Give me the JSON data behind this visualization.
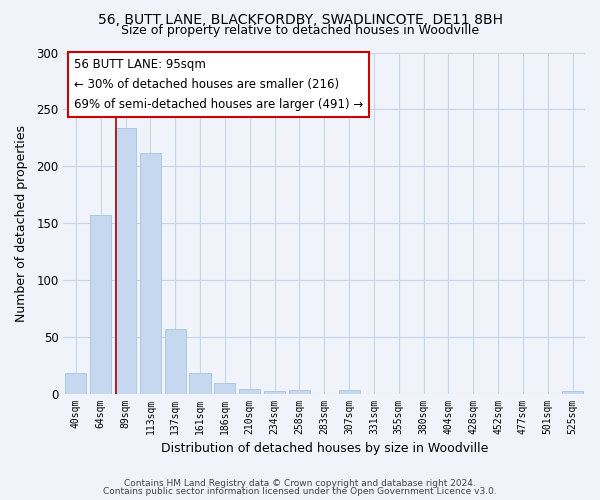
{
  "title1": "56, BUTT LANE, BLACKFORDBY, SWADLINCOTE, DE11 8BH",
  "title2": "Size of property relative to detached houses in Woodville",
  "xlabel": "Distribution of detached houses by size in Woodville",
  "ylabel": "Number of detached properties",
  "bar_color": "#c5d8f0",
  "bar_edge_color": "#a8c4e0",
  "categories": [
    "40sqm",
    "64sqm",
    "89sqm",
    "113sqm",
    "137sqm",
    "161sqm",
    "186sqm",
    "210sqm",
    "234sqm",
    "258sqm",
    "283sqm",
    "307sqm",
    "331sqm",
    "355sqm",
    "380sqm",
    "404sqm",
    "428sqm",
    "452sqm",
    "477sqm",
    "501sqm",
    "525sqm"
  ],
  "values": [
    18,
    157,
    234,
    212,
    57,
    18,
    9,
    4,
    2,
    3,
    0,
    3,
    0,
    0,
    0,
    0,
    0,
    0,
    0,
    0,
    2
  ],
  "ylim": [
    0,
    300
  ],
  "yticks": [
    0,
    50,
    100,
    150,
    200,
    250,
    300
  ],
  "vline_x": 1.6,
  "vline_color": "#aa0000",
  "annotation_title": "56 BUTT LANE: 95sqm",
  "annotation_line1": "← 30% of detached houses are smaller (216)",
  "annotation_line2": "69% of semi-detached houses are larger (491) →",
  "footnote1": "Contains HM Land Registry data © Crown copyright and database right 2024.",
  "footnote2": "Contains public sector information licensed under the Open Government Licence v3.0.",
  "bg_color": "#f0f4fa",
  "plot_bg_color": "#f0f4fa",
  "grid_color": "#c8d4e8"
}
